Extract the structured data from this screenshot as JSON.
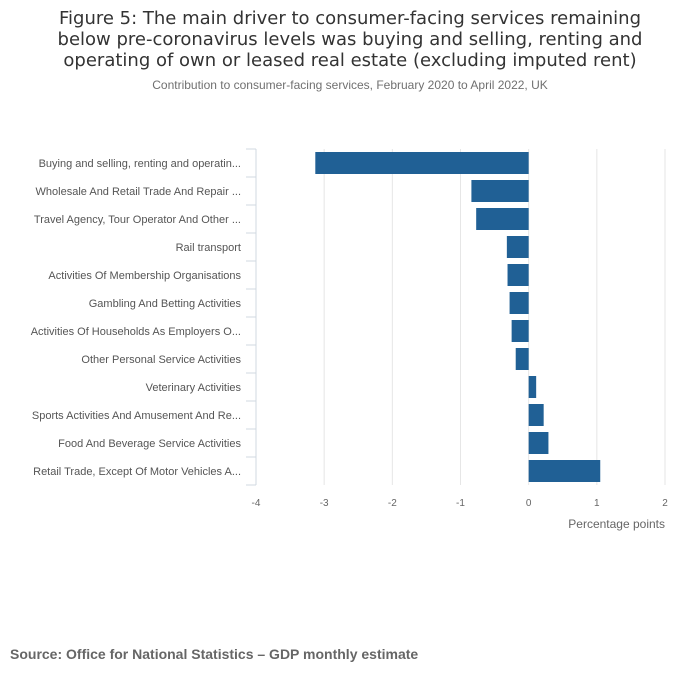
{
  "chart_data": {
    "type": "bar",
    "orientation": "horizontal",
    "title": "Figure 5: The main driver to consumer-facing services remaining below pre-coronavirus levels was buying and selling, renting and operating of own or leased real estate (excluding imputed rent)",
    "subtitle": "Contribution to consumer-facing services, February 2020 to April 2022, UK",
    "categories": [
      "Buying and selling, renting and operatin...",
      "Wholesale And Retail Trade And Repair ...",
      "Travel Agency, Tour Operator And Other ...",
      "Rail transport",
      "Activities Of Membership Organisations",
      "Gambling And Betting Activities",
      "Activities Of Households As Employers O...",
      "Other Personal Service Activities",
      "Veterinary Activities",
      "Sports Activities And Amusement And Re...",
      "Food And Beverage Service Activities",
      "Retail Trade, Except Of Motor Vehicles A..."
    ],
    "values": [
      -3.13,
      -0.84,
      -0.77,
      -0.32,
      -0.31,
      -0.28,
      -0.25,
      -0.19,
      0.11,
      0.22,
      0.29,
      1.05
    ],
    "xlabel": "Percentage points",
    "ylabel": "",
    "xlim": [
      -4,
      2
    ],
    "xticks": [
      "-4",
      "-3",
      "-2",
      "-1",
      "0",
      "1",
      "2"
    ],
    "grid": true,
    "bar_color": "#206095"
  },
  "source": "Source: Office for National Statistics – GDP monthly estimate"
}
